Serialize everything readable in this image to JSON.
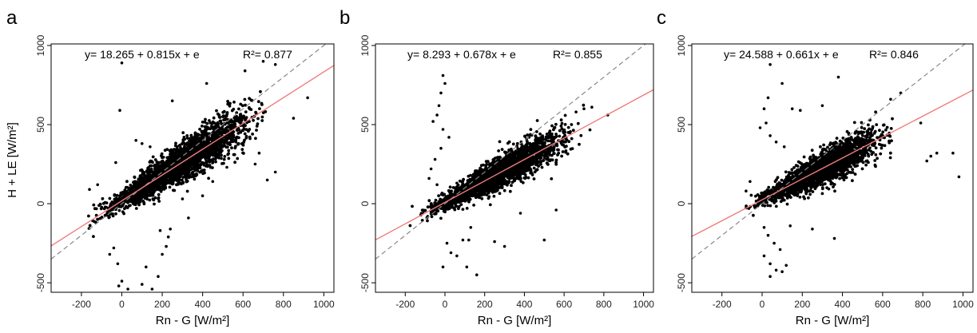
{
  "chart_data": [
    {
      "type": "scatter",
      "panel_label": "a",
      "equation": "y= 18.265 + 0.815x + e",
      "r2": "R²= 0.877",
      "xlabel": "Rn - G [W/m²]",
      "ylabel": "H + LE [W/m²]",
      "xlim": [
        -350,
        1050
      ],
      "ylim": [
        -560,
        1010
      ],
      "xticks": [
        -200,
        0,
        200,
        400,
        600,
        800,
        1000
      ],
      "yticks": [
        -500,
        0,
        500,
        1000
      ],
      "fit": {
        "intercept": 18.265,
        "slope": 0.815,
        "color": "#f07c7c"
      },
      "one_to_one": {
        "color": "#888888",
        "style": "dashed"
      },
      "point_color": "#000000",
      "cloud": {
        "x_range": [
          -210,
          760
        ],
        "noise_sd": 55
      },
      "outliers": [
        [
          0,
          890
        ],
        [
          -10,
          590
        ],
        [
          -30,
          260
        ],
        [
          -40,
          -280
        ],
        [
          -60,
          -320
        ],
        [
          -20,
          -380
        ],
        [
          -15,
          -520
        ],
        [
          0,
          -490
        ],
        [
          30,
          -540
        ],
        [
          100,
          -510
        ],
        [
          150,
          -540
        ],
        [
          120,
          -400
        ],
        [
          180,
          -460
        ],
        [
          200,
          -320
        ],
        [
          220,
          -270
        ],
        [
          230,
          -210
        ],
        [
          190,
          -170
        ],
        [
          240,
          -160
        ],
        [
          760,
          200
        ],
        [
          720,
          150
        ],
        [
          920,
          670
        ],
        [
          850,
          540
        ],
        [
          760,
          880
        ],
        [
          700,
          900
        ],
        [
          610,
          840
        ],
        [
          100,
          380
        ],
        [
          140,
          360
        ],
        [
          70,
          400
        ],
        [
          160,
          90
        ],
        [
          300,
          30
        ],
        [
          330,
          -90
        ],
        [
          400,
          50
        ],
        [
          450,
          140
        ],
        [
          520,
          230
        ],
        [
          -120,
          120
        ],
        [
          -160,
          90
        ],
        [
          660,
          250
        ],
        [
          680,
          320
        ],
        [
          250,
          650
        ],
        [
          420,
          760
        ]
      ]
    },
    {
      "type": "scatter",
      "panel_label": "b",
      "equation": "y= 8.293 + 0.678x + e",
      "r2": "R²= 0.855",
      "xlabel": "Rn - G [W/m²]",
      "ylabel": "",
      "xlim": [
        -350,
        1050
      ],
      "ylim": [
        -560,
        1010
      ],
      "xticks": [
        -200,
        0,
        200,
        400,
        600,
        800,
        1000
      ],
      "yticks": [
        -500,
        0,
        500,
        1000
      ],
      "fit": {
        "intercept": 8.293,
        "slope": 0.678,
        "color": "#f07c7c"
      },
      "one_to_one": {
        "color": "#888888",
        "style": "dashed"
      },
      "point_color": "#000000",
      "cloud": {
        "x_range": [
          -180,
          700
        ],
        "noise_sd": 45
      },
      "outliers": [
        [
          -10,
          810
        ],
        [
          0,
          760
        ],
        [
          -20,
          700
        ],
        [
          -30,
          620
        ],
        [
          -40,
          560
        ],
        [
          -60,
          520
        ],
        [
          -10,
          470
        ],
        [
          20,
          420
        ],
        [
          -20,
          350
        ],
        [
          -50,
          280
        ],
        [
          -70,
          220
        ],
        [
          -80,
          160
        ],
        [
          10,
          -250
        ],
        [
          30,
          -310
        ],
        [
          60,
          -330
        ],
        [
          -10,
          -400
        ],
        [
          110,
          -400
        ],
        [
          160,
          -450
        ],
        [
          120,
          -230
        ],
        [
          250,
          -240
        ],
        [
          300,
          -270
        ],
        [
          700,
          600
        ],
        [
          740,
          610
        ],
        [
          820,
          560
        ],
        [
          660,
          580
        ],
        [
          560,
          -40
        ],
        [
          500,
          -230
        ],
        [
          -40,
          120
        ],
        [
          60,
          130
        ],
        [
          130,
          -150
        ],
        [
          90,
          -230
        ],
        [
          380,
          -60
        ]
      ]
    },
    {
      "type": "scatter",
      "panel_label": "c",
      "equation": "y= 24.588 + 0.661x + e",
      "r2": "R²= 0.846",
      "xlabel": "Rn - G [W/m²]",
      "ylabel": "",
      "xlim": [
        -350,
        1050
      ],
      "ylim": [
        -560,
        1010
      ],
      "xticks": [
        -200,
        0,
        200,
        400,
        600,
        800,
        1000
      ],
      "yticks": [
        -500,
        0,
        500,
        1000
      ],
      "fit": {
        "intercept": 24.588,
        "slope": 0.661,
        "color": "#f07c7c"
      },
      "one_to_one": {
        "color": "#888888",
        "style": "dashed"
      },
      "point_color": "#000000",
      "cloud": {
        "x_range": [
          -90,
          670
        ],
        "noise_sd": 45
      },
      "outliers": [
        [
          40,
          880
        ],
        [
          100,
          760
        ],
        [
          380,
          800
        ],
        [
          150,
          600
        ],
        [
          190,
          590
        ],
        [
          10,
          600
        ],
        [
          30,
          670
        ],
        [
          20,
          510
        ],
        [
          -10,
          480
        ],
        [
          40,
          430
        ],
        [
          70,
          390
        ],
        [
          110,
          360
        ],
        [
          10,
          -150
        ],
        [
          30,
          -200
        ],
        [
          60,
          -250
        ],
        [
          10,
          -330
        ],
        [
          40,
          -380
        ],
        [
          70,
          -420
        ],
        [
          100,
          -430
        ],
        [
          120,
          -390
        ],
        [
          40,
          -460
        ],
        [
          90,
          -290
        ],
        [
          360,
          -220
        ],
        [
          980,
          170
        ],
        [
          950,
          320
        ],
        [
          870,
          320
        ],
        [
          840,
          300
        ],
        [
          820,
          270
        ],
        [
          790,
          510
        ],
        [
          690,
          700
        ],
        [
          640,
          660
        ],
        [
          -60,
          140
        ],
        [
          -80,
          80
        ],
        [
          140,
          -140
        ],
        [
          250,
          -160
        ],
        [
          300,
          620
        ]
      ]
    }
  ]
}
